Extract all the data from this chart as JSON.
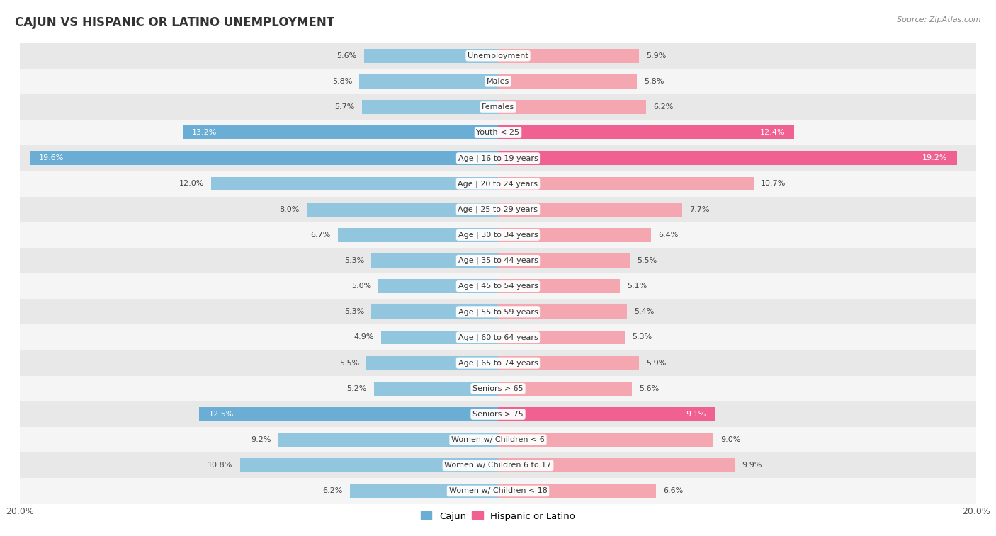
{
  "title": "CAJUN VS HISPANIC OR LATINO UNEMPLOYMENT",
  "source": "Source: ZipAtlas.com",
  "categories": [
    "Unemployment",
    "Males",
    "Females",
    "Youth < 25",
    "Age | 16 to 19 years",
    "Age | 20 to 24 years",
    "Age | 25 to 29 years",
    "Age | 30 to 34 years",
    "Age | 35 to 44 years",
    "Age | 45 to 54 years",
    "Age | 55 to 59 years",
    "Age | 60 to 64 years",
    "Age | 65 to 74 years",
    "Seniors > 65",
    "Seniors > 75",
    "Women w/ Children < 6",
    "Women w/ Children 6 to 17",
    "Women w/ Children < 18"
  ],
  "cajun": [
    5.6,
    5.8,
    5.7,
    13.2,
    19.6,
    12.0,
    8.0,
    6.7,
    5.3,
    5.0,
    5.3,
    4.9,
    5.5,
    5.2,
    12.5,
    9.2,
    10.8,
    6.2
  ],
  "hispanic": [
    5.9,
    5.8,
    6.2,
    12.4,
    19.2,
    10.7,
    7.7,
    6.4,
    5.5,
    5.1,
    5.4,
    5.3,
    5.9,
    5.6,
    9.1,
    9.0,
    9.9,
    6.6
  ],
  "cajun_color_normal": "#92c5de",
  "cajun_color_highlight": "#6aaed6",
  "hispanic_color_normal": "#f4a7b0",
  "hispanic_color_highlight": "#f06090",
  "row_bg_dark": "#e8e8e8",
  "row_bg_light": "#f5f5f5",
  "highlight_rows": [
    3,
    4,
    14
  ],
  "xlim": 20.0,
  "bar_height": 0.55,
  "legend_cajun": "Cajun",
  "legend_hispanic": "Hispanic or Latino",
  "figsize": [
    14.06,
    7.57
  ],
  "dpi": 100
}
